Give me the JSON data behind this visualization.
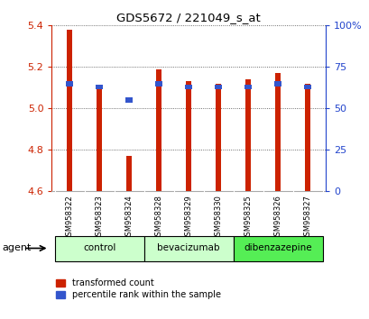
{
  "title": "GDS5672 / 221049_s_at",
  "samples": [
    "GSM958322",
    "GSM958323",
    "GSM958324",
    "GSM958328",
    "GSM958329",
    "GSM958330",
    "GSM958325",
    "GSM958326",
    "GSM958327"
  ],
  "red_values": [
    5.38,
    5.11,
    4.77,
    5.19,
    5.13,
    5.12,
    5.14,
    5.17,
    5.12
  ],
  "blue_values": [
    65,
    63,
    55,
    65,
    63,
    63,
    63,
    65,
    63
  ],
  "ylim_left": [
    4.6,
    5.4
  ],
  "ylim_right": [
    0,
    100
  ],
  "yticks_left": [
    4.6,
    4.8,
    5.0,
    5.2,
    5.4
  ],
  "yticks_right": [
    0,
    25,
    50,
    75,
    100
  ],
  "group_label": "agent",
  "bar_color": "#cc2200",
  "blue_color": "#3355cc",
  "bar_width": 0.18,
  "baseline": 4.6,
  "legend_red": "transformed count",
  "legend_blue": "percentile rank within the sample",
  "background_color": "#ffffff",
  "plot_bg": "#ffffff",
  "tick_color_left": "#cc2200",
  "tick_color_right": "#2244cc",
  "grid_color": "#000000",
  "sample_bg": "#cccccc",
  "group_defs": [
    {
      "label": "control",
      "start": 0,
      "end": 2,
      "color": "#ccffcc"
    },
    {
      "label": "bevacizumab",
      "start": 3,
      "end": 5,
      "color": "#ccffcc"
    },
    {
      "label": "dibenzazepine",
      "start": 6,
      "end": 8,
      "color": "#55ee55"
    }
  ]
}
